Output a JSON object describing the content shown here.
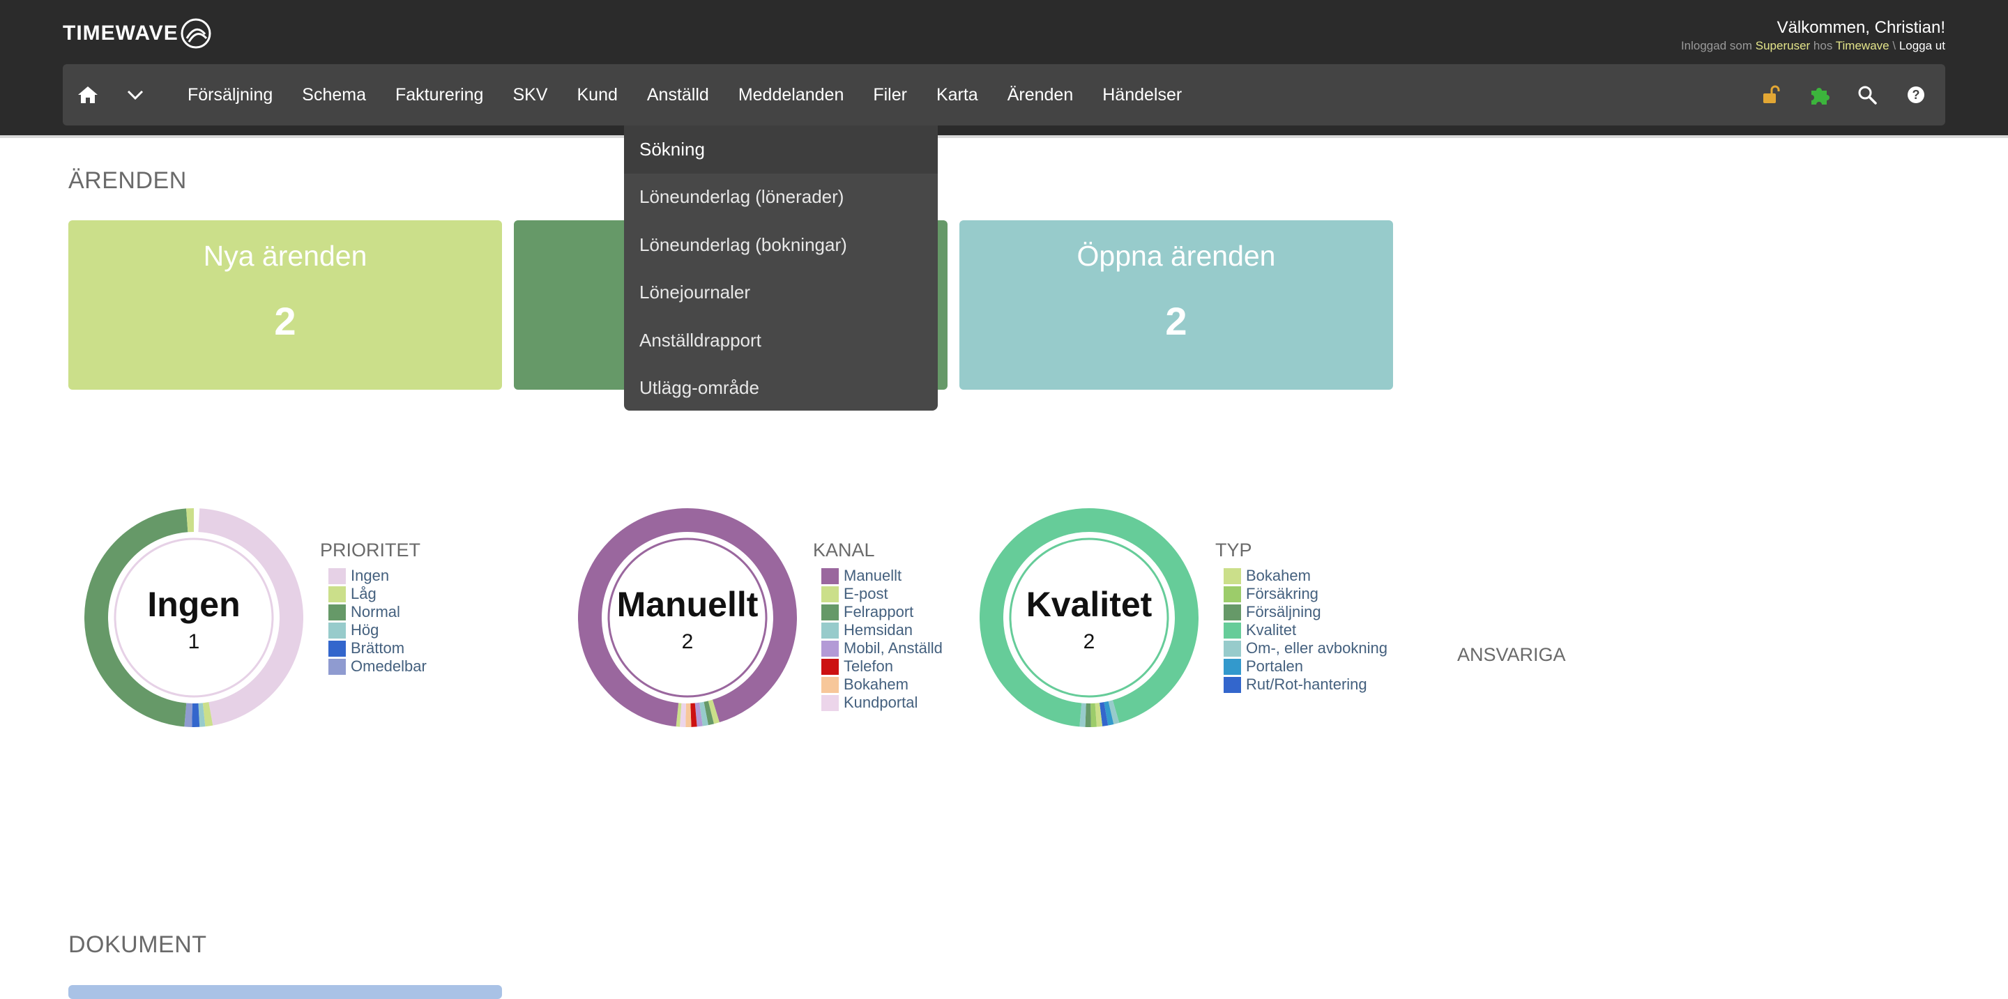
{
  "header": {
    "logo_text": "TIMEWAVE",
    "welcome": "Välkommen, Christian!",
    "login_prefix": "Inloggad som",
    "login_user": "Superuser",
    "login_mid": "hos",
    "login_company": "Timewave",
    "login_sep": "\\",
    "logout": "Logga ut"
  },
  "nav": {
    "items": [
      "Försäljning",
      "Schema",
      "Fakturering",
      "SKV",
      "Kund",
      "Anställd",
      "Meddelanden",
      "Filer",
      "Karta",
      "Ärenden",
      "Händelser"
    ],
    "icons": [
      "home-icon",
      "chevron-down-icon",
      "unlock-icon",
      "puzzle-icon",
      "search-icon",
      "help-icon"
    ]
  },
  "dropdown": {
    "items": [
      "Sökning",
      "Löneunderlag (lönerader)",
      "Löneunderlag (bokningar)",
      "Lönejournaler",
      "Anställdrapport",
      "Utlägg-område"
    ]
  },
  "arenden": {
    "title": "ÄRENDEN",
    "cards": [
      {
        "title": "Nya ärenden",
        "count": "2",
        "color": "#cbdf8a"
      },
      {
        "title": "",
        "count": "",
        "color": "#669968"
      },
      {
        "title": "Öppna ärenden",
        "count": "2",
        "color": "#97cbcb"
      }
    ]
  },
  "charts": {
    "prioritet": {
      "title": "PRIORITET",
      "center_name": "Ingen",
      "center_value": "1",
      "legend": [
        {
          "label": "Ingen",
          "color": "#e6d1e6"
        },
        {
          "label": "Låg",
          "color": "#cbdf8a"
        },
        {
          "label": "Normal",
          "color": "#669968"
        },
        {
          "label": "Hög",
          "color": "#97cbcb"
        },
        {
          "label": "Brättom",
          "color": "#3366cc"
        },
        {
          "label": "Omedelbar",
          "color": "#8f9bd0"
        }
      ]
    },
    "kanal": {
      "title": "KANAL",
      "center_name": "Manuellt",
      "center_value": "2",
      "legend": [
        {
          "label": "Manuellt",
          "color": "#9a679e"
        },
        {
          "label": "E-post",
          "color": "#cbdf8a"
        },
        {
          "label": "Felrapport",
          "color": "#669968"
        },
        {
          "label": "Hemsidan",
          "color": "#97cbcb"
        },
        {
          "label": "Mobil, Anställd",
          "color": "#b39ad6"
        },
        {
          "label": "Telefon",
          "color": "#cc1111"
        },
        {
          "label": "Bokahem",
          "color": "#f7c79a"
        },
        {
          "label": "Kundportal",
          "color": "#ecd5ea"
        }
      ]
    },
    "typ": {
      "title": "TYP",
      "center_name": "Kvalitet",
      "center_value": "2",
      "legend": [
        {
          "label": "Bokahem",
          "color": "#cbdf8a"
        },
        {
          "label": "Försäkring",
          "color": "#9ccc6a"
        },
        {
          "label": "Försäljning",
          "color": "#669968"
        },
        {
          "label": "Kvalitet",
          "color": "#66cc99"
        },
        {
          "label": "Om-, eller avbokning",
          "color": "#97cbcb"
        },
        {
          "label": "Portalen",
          "color": "#3399cc"
        },
        {
          "label": "Rut/Rot-hantering",
          "color": "#3366cc"
        }
      ]
    },
    "ansvariga_title": "ANSVARIGA"
  },
  "dokument": {
    "title": "DOKUMENT"
  }
}
